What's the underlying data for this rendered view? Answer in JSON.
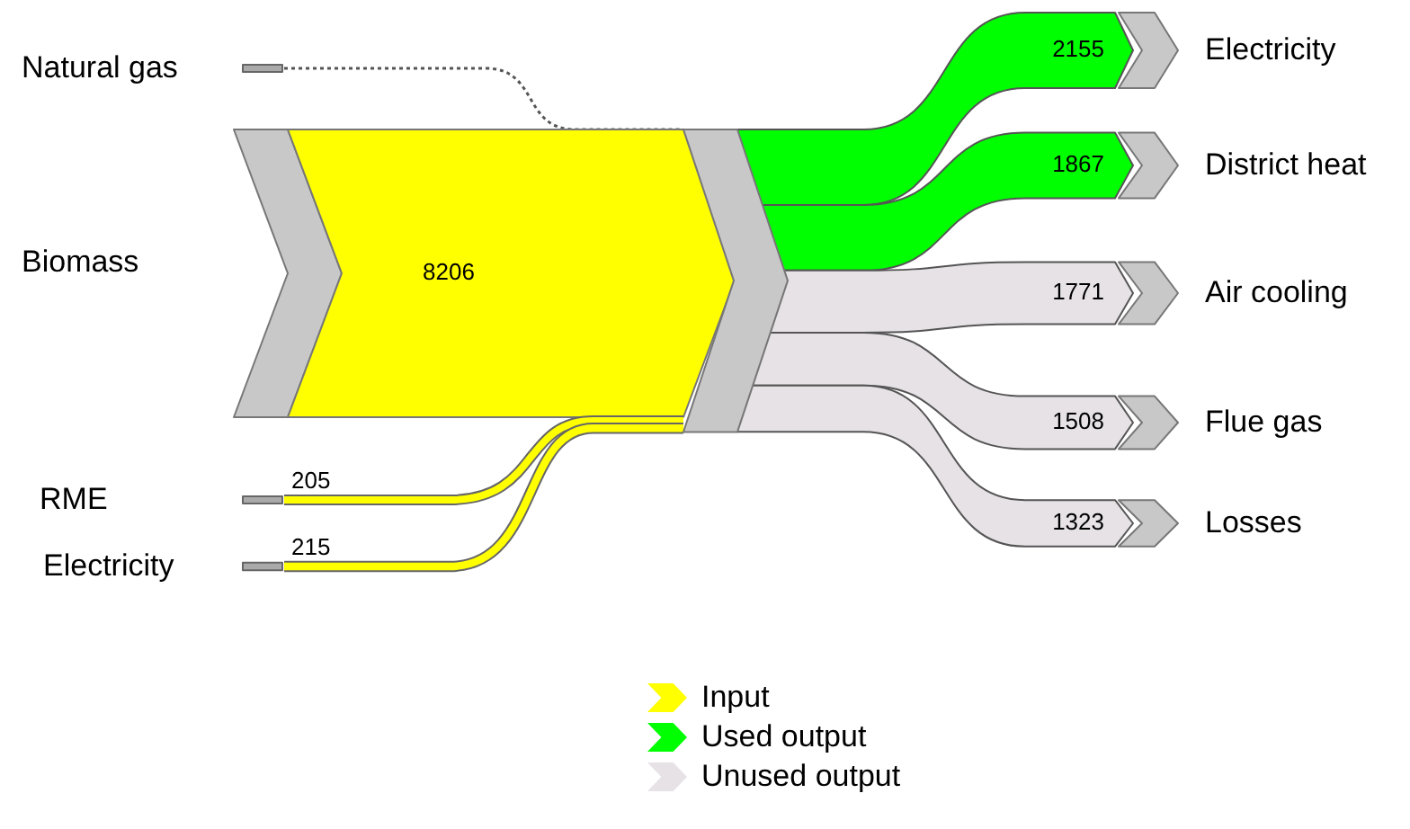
{
  "chart_data": {
    "type": "other",
    "categories": [
      "Natural gas",
      "Biomass",
      "RME",
      "Electricity",
      "Electricity",
      "District heat",
      "Air cooling",
      "Flue gas",
      "Losses"
    ],
    "series": [
      {
        "name": "Input",
        "color": "#ffff00",
        "values": [
          null,
          8206,
          205,
          215,
          null,
          null,
          null,
          null,
          null
        ]
      },
      {
        "name": "Used output",
        "color": "#00ff00",
        "values": [
          null,
          null,
          null,
          null,
          2155,
          1867,
          null,
          null,
          null
        ]
      },
      {
        "name": "Unused output",
        "color": "#e6e2e6",
        "values": [
          null,
          null,
          null,
          null,
          null,
          null,
          1771,
          1508,
          1323
        ]
      }
    ],
    "data_labels": true,
    "legend": "bottom"
  }
}
